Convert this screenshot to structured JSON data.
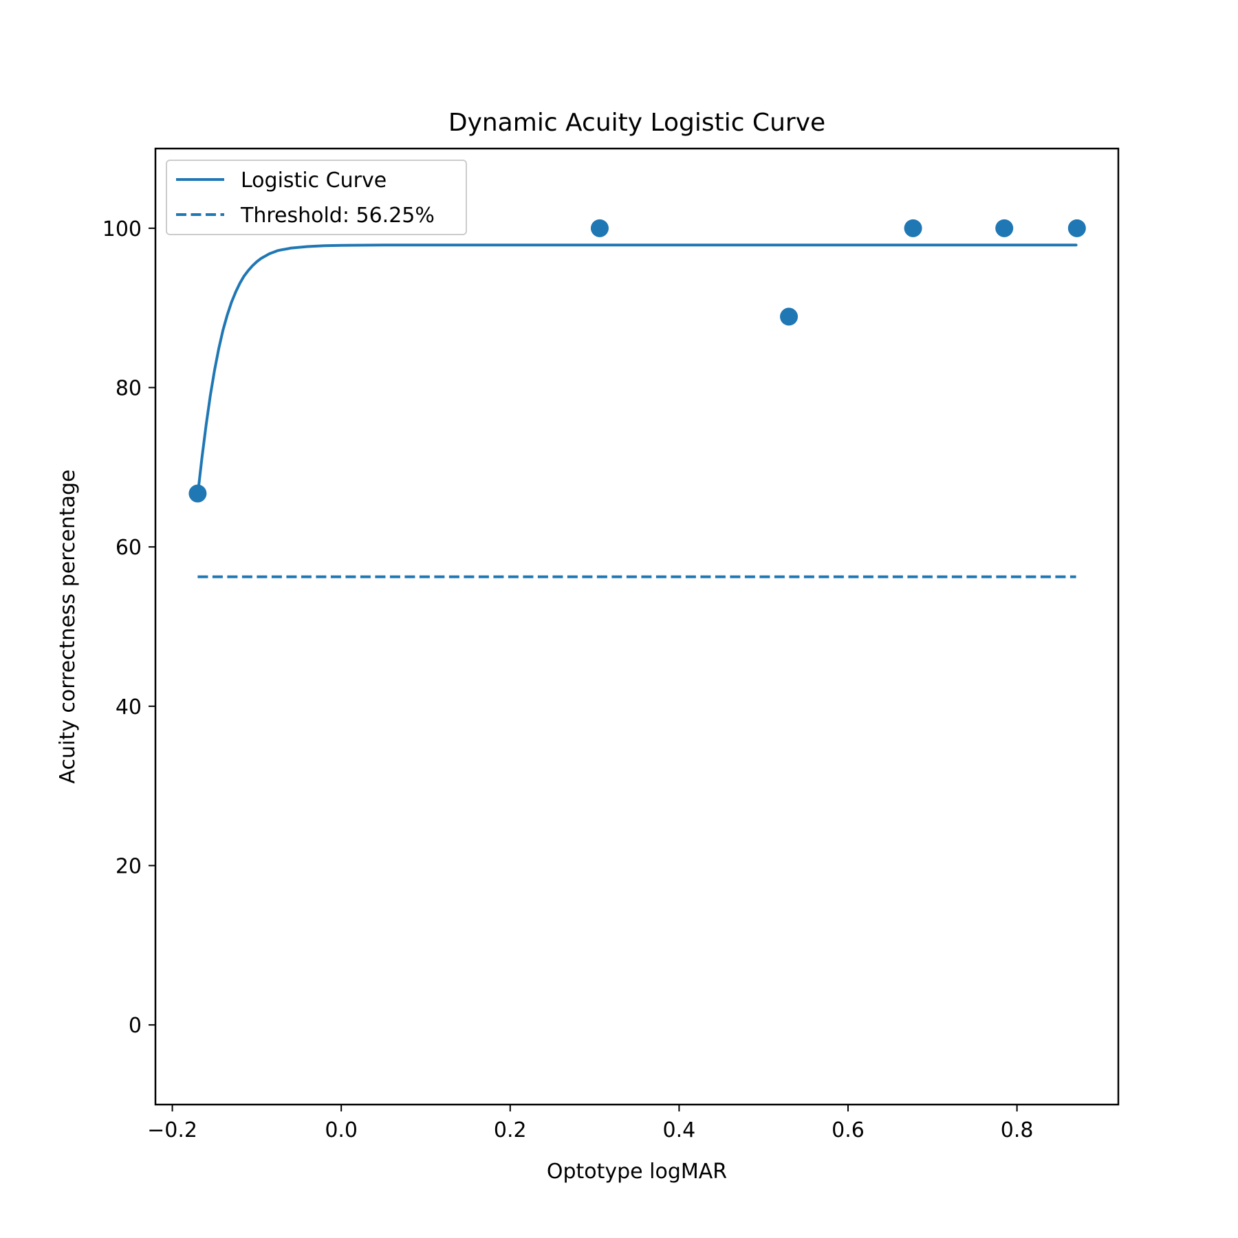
{
  "colors": {
    "series": "#1f77b4",
    "axis": "#000000",
    "background": "#ffffff",
    "legend_border": "#cccccc"
  },
  "chart_data": {
    "type": "line",
    "title": "Dynamic Acuity Logistic Curve",
    "xlabel": "Optotype logMAR",
    "ylabel": "Acuity correctness percentage",
    "xlim": [
      -0.22,
      0.92
    ],
    "ylim": [
      -10,
      110
    ],
    "xticks": [
      -0.2,
      0.0,
      0.2,
      0.4,
      0.6,
      0.8
    ],
    "xtick_labels": [
      "−0.2",
      "0.0",
      "0.2",
      "0.4",
      "0.6",
      "0.8"
    ],
    "yticks": [
      0,
      20,
      40,
      60,
      80,
      100
    ],
    "ytick_labels": [
      "0",
      "20",
      "40",
      "60",
      "80",
      "100"
    ],
    "grid": false,
    "legend_position": "top-left",
    "series": [
      {
        "name": "Logistic Curve",
        "kind": "line",
        "style": "solid",
        "x": [
          -0.17,
          -0.165,
          -0.16,
          -0.155,
          -0.15,
          -0.145,
          -0.14,
          -0.135,
          -0.13,
          -0.125,
          -0.12,
          -0.115,
          -0.11,
          -0.105,
          -0.1,
          -0.095,
          -0.09,
          -0.085,
          -0.08,
          -0.075,
          -0.07,
          -0.065,
          -0.06,
          -0.05,
          -0.04,
          -0.03,
          -0.02,
          0.0,
          0.05,
          0.1,
          0.2,
          0.4,
          0.6,
          0.87
        ],
        "y": [
          66.5,
          71.1,
          75.3,
          79.0,
          82.2,
          84.9,
          87.2,
          89.1,
          90.7,
          92.0,
          93.1,
          94.0,
          94.7,
          95.3,
          95.8,
          96.2,
          96.5,
          96.8,
          97.0,
          97.2,
          97.3,
          97.4,
          97.5,
          97.6,
          97.7,
          97.75,
          97.8,
          97.85,
          97.9,
          97.9,
          97.9,
          97.9,
          97.9,
          97.9
        ]
      },
      {
        "name": "Threshold: 56.25%",
        "kind": "line",
        "style": "dashed",
        "x": [
          -0.17,
          0.87
        ],
        "y": [
          56.25,
          56.25
        ]
      },
      {
        "kind": "scatter",
        "x": [
          -0.17,
          0.306,
          0.53,
          0.677,
          0.785,
          0.871
        ],
        "y": [
          66.7,
          100,
          88.9,
          100,
          100,
          100
        ]
      }
    ]
  }
}
